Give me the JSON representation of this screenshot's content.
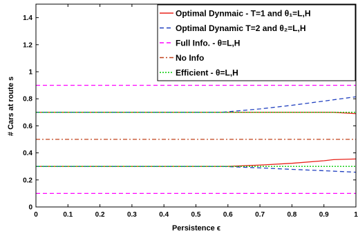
{
  "chart_data": {
    "type": "line",
    "xlabel": "Persistence ϵ",
    "ylabel": "# Cars at route s",
    "xlim": [
      0,
      1
    ],
    "ylim": [
      0,
      1.5
    ],
    "x_ticks": [
      "0",
      "0.1",
      "0.2",
      "0.3",
      "0.4",
      "0.5",
      "0.6",
      "0.7",
      "0.8",
      "0.9",
      "1"
    ],
    "y_ticks": [
      "0",
      "0.2",
      "0.4",
      "0.6",
      "0.8",
      "1",
      "1.2",
      "1.4"
    ],
    "grid": false,
    "legend_position": "top-right",
    "legend": [
      {
        "text": "Optimal Dynmaic - T=1 and θ₁=L,H",
        "color": "#e8221a",
        "dash": "solid"
      },
      {
        "text": "Optimal Dynamic T=2 and θ₂=L,H",
        "color": "#1f3fbf",
        "dash": "dashed"
      },
      {
        "text": "Full Info. - θ=L,H",
        "color": "#ff00ff",
        "dash": "dashed"
      },
      {
        "text": "No Info",
        "color": "#c0401a",
        "dash": "dashdot"
      },
      {
        "text": "Efficient - θ=L,H",
        "color": "#00cc00",
        "dash": "dotted"
      }
    ],
    "series": [
      {
        "legend": 0,
        "color": "#e8221a",
        "dash": "solid",
        "x": [
          0,
          0.6,
          0.7,
          0.8,
          0.9,
          0.93,
          1.0
        ],
        "y": [
          0.7,
          0.7,
          0.7,
          0.7,
          0.7,
          0.7,
          0.69
        ]
      },
      {
        "legend": 0,
        "color": "#e8221a",
        "dash": "solid",
        "x": [
          0,
          0.6,
          0.7,
          0.8,
          0.9,
          0.93,
          1.0
        ],
        "y": [
          0.3,
          0.3,
          0.31,
          0.323,
          0.342,
          0.35,
          0.355
        ]
      },
      {
        "legend": 1,
        "color": "#1f3fbf",
        "dash": "dashed",
        "x": [
          0,
          0.58,
          0.7,
          0.8,
          0.9,
          1.0
        ],
        "y": [
          0.7,
          0.7,
          0.725,
          0.752,
          0.783,
          0.815
        ]
      },
      {
        "legend": 1,
        "color": "#1f3fbf",
        "dash": "dashed",
        "x": [
          0,
          0.58,
          0.7,
          0.8,
          0.9,
          1.0
        ],
        "y": [
          0.3,
          0.3,
          0.289,
          0.278,
          0.268,
          0.257
        ]
      },
      {
        "legend": 2,
        "color": "#ff00ff",
        "dash": "dashed",
        "x": [
          0,
          1
        ],
        "y": [
          0.9,
          0.9
        ]
      },
      {
        "legend": 2,
        "color": "#ff00ff",
        "dash": "dashed",
        "x": [
          0,
          1
        ],
        "y": [
          0.1,
          0.1
        ]
      },
      {
        "legend": 3,
        "color": "#c0401a",
        "dash": "dashdot",
        "x": [
          0,
          1
        ],
        "y": [
          0.5,
          0.5
        ]
      },
      {
        "legend": 4,
        "color": "#00cc00",
        "dash": "dotted",
        "x": [
          0,
          1
        ],
        "y": [
          0.7,
          0.7
        ]
      },
      {
        "legend": 4,
        "color": "#00cc00",
        "dash": "dotted",
        "x": [
          0,
          1
        ],
        "y": [
          0.3,
          0.3
        ]
      }
    ]
  }
}
